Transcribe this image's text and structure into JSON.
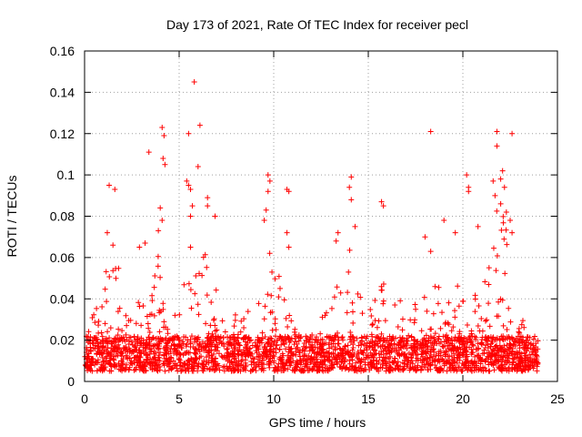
{
  "chart_data": {
    "type": "scatter",
    "title": "Day 173 of 2021, Rate Of TEC Index for receiver pecl",
    "xlabel": "GPS time / hours",
    "ylabel": "ROTI / TECUs",
    "xlim": [
      0,
      25
    ],
    "ylim": [
      0,
      0.16
    ],
    "x_ticks": [
      0,
      5,
      10,
      15,
      20,
      25
    ],
    "x_tick_labels": [
      "0",
      "5",
      "10",
      "15",
      "20",
      "25"
    ],
    "y_ticks": [
      0,
      0.02,
      0.04,
      0.06,
      0.08,
      0.1,
      0.12,
      0.14,
      0.16
    ],
    "y_tick_labels": [
      "0",
      "0.02",
      "0.04",
      "0.06",
      "0.08",
      "0.1",
      "0.12",
      "0.14",
      "0.16"
    ],
    "grid": true,
    "marker": "+",
    "color": "#ff0000",
    "envelope": {
      "x": [
        0,
        0.3,
        0.5,
        1.0,
        1.3,
        1.5,
        1.8,
        2.0,
        2.5,
        3.0,
        3.3,
        3.6,
        4.0,
        4.2,
        4.5,
        5.0,
        5.3,
        5.7,
        6.0,
        6.3,
        6.6,
        7.0,
        7.5,
        8.0,
        8.5,
        9.0,
        9.5,
        9.8,
        10.0,
        10.3,
        10.6,
        11.0,
        11.5,
        12.0,
        12.5,
        13.0,
        13.3,
        13.6,
        14.0,
        14.3,
        14.6,
        15.0,
        15.5,
        15.8,
        16.2,
        16.6,
        17.0,
        17.5,
        18.0,
        18.3,
        18.6,
        19.0,
        19.5,
        20.0,
        20.5,
        21.0,
        21.5,
        21.8,
        22.2,
        22.6,
        23.0,
        23.5,
        24.0
      ],
      "y": [
        0.02,
        0.03,
        0.04,
        0.05,
        0.06,
        0.055,
        0.055,
        0.04,
        0.04,
        0.05,
        0.04,
        0.045,
        0.07,
        0.06,
        0.035,
        0.045,
        0.06,
        0.055,
        0.05,
        0.065,
        0.06,
        0.05,
        0.035,
        0.035,
        0.035,
        0.035,
        0.05,
        0.08,
        0.06,
        0.06,
        0.04,
        0.03,
        0.025,
        0.025,
        0.03,
        0.045,
        0.06,
        0.055,
        0.065,
        0.055,
        0.04,
        0.04,
        0.045,
        0.05,
        0.035,
        0.04,
        0.04,
        0.04,
        0.045,
        0.05,
        0.05,
        0.045,
        0.05,
        0.05,
        0.045,
        0.05,
        0.06,
        0.085,
        0.08,
        0.05,
        0.035,
        0.025,
        0.02
      ]
    },
    "outliers": [
      {
        "x": 1.3,
        "y": 0.095
      },
      {
        "x": 1.6,
        "y": 0.093
      },
      {
        "x": 1.2,
        "y": 0.072
      },
      {
        "x": 1.5,
        "y": 0.066
      },
      {
        "x": 3.4,
        "y": 0.111
      },
      {
        "x": 3.2,
        "y": 0.067
      },
      {
        "x": 2.9,
        "y": 0.065
      },
      {
        "x": 4.1,
        "y": 0.123
      },
      {
        "x": 4.2,
        "y": 0.119
      },
      {
        "x": 4.15,
        "y": 0.108
      },
      {
        "x": 4.25,
        "y": 0.105
      },
      {
        "x": 4.0,
        "y": 0.084
      },
      {
        "x": 4.1,
        "y": 0.078
      },
      {
        "x": 3.9,
        "y": 0.073
      },
      {
        "x": 5.8,
        "y": 0.145
      },
      {
        "x": 6.1,
        "y": 0.124
      },
      {
        "x": 5.5,
        "y": 0.12
      },
      {
        "x": 6.0,
        "y": 0.104
      },
      {
        "x": 5.4,
        "y": 0.097
      },
      {
        "x": 5.5,
        "y": 0.095
      },
      {
        "x": 5.6,
        "y": 0.093
      },
      {
        "x": 5.7,
        "y": 0.085
      },
      {
        "x": 5.6,
        "y": 0.08
      },
      {
        "x": 6.5,
        "y": 0.089
      },
      {
        "x": 6.5,
        "y": 0.085
      },
      {
        "x": 6.9,
        "y": 0.08
      },
      {
        "x": 5.6,
        "y": 0.065
      },
      {
        "x": 9.7,
        "y": 0.1
      },
      {
        "x": 9.8,
        "y": 0.097
      },
      {
        "x": 9.7,
        "y": 0.092
      },
      {
        "x": 9.6,
        "y": 0.083
      },
      {
        "x": 9.5,
        "y": 0.078
      },
      {
        "x": 10.7,
        "y": 0.093
      },
      {
        "x": 10.8,
        "y": 0.092
      },
      {
        "x": 10.7,
        "y": 0.072
      },
      {
        "x": 10.8,
        "y": 0.065
      },
      {
        "x": 13.4,
        "y": 0.072
      },
      {
        "x": 13.3,
        "y": 0.068
      },
      {
        "x": 14.1,
        "y": 0.099
      },
      {
        "x": 14.0,
        "y": 0.094
      },
      {
        "x": 14.1,
        "y": 0.088
      },
      {
        "x": 14.3,
        "y": 0.075
      },
      {
        "x": 15.7,
        "y": 0.087
      },
      {
        "x": 15.8,
        "y": 0.085
      },
      {
        "x": 18.3,
        "y": 0.121
      },
      {
        "x": 18.0,
        "y": 0.07
      },
      {
        "x": 18.3,
        "y": 0.063
      },
      {
        "x": 19.0,
        "y": 0.078
      },
      {
        "x": 19.6,
        "y": 0.072
      },
      {
        "x": 20.2,
        "y": 0.1
      },
      {
        "x": 20.3,
        "y": 0.094
      },
      {
        "x": 20.3,
        "y": 0.092
      },
      {
        "x": 20.8,
        "y": 0.075
      },
      {
        "x": 21.8,
        "y": 0.121
      },
      {
        "x": 21.8,
        "y": 0.114
      },
      {
        "x": 22.6,
        "y": 0.12
      },
      {
        "x": 22.1,
        "y": 0.102
      },
      {
        "x": 22.0,
        "y": 0.098
      },
      {
        "x": 21.6,
        "y": 0.097
      },
      {
        "x": 22.2,
        "y": 0.094
      },
      {
        "x": 21.7,
        "y": 0.09
      },
      {
        "x": 22.0,
        "y": 0.086
      },
      {
        "x": 22.3,
        "y": 0.082
      },
      {
        "x": 22.5,
        "y": 0.078
      },
      {
        "x": 22.6,
        "y": 0.072
      }
    ]
  }
}
